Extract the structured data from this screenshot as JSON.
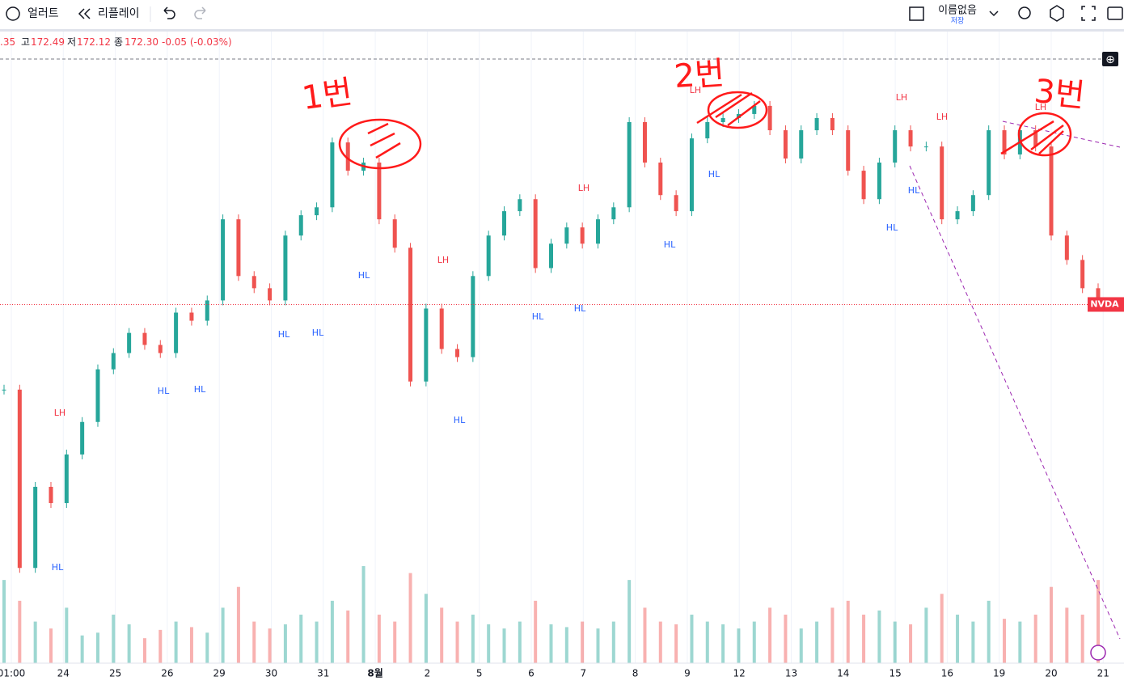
{
  "toolbar": {
    "alert": "얼러트",
    "replay": "리플레이",
    "layout_name": "이름없음",
    "save": "저장"
  },
  "legend": {
    "open_partial": ".35",
    "high_label": "고",
    "high": "172.49",
    "low_label": "저",
    "low": "172.12",
    "close_label": "종",
    "close": "172.30",
    "change": "-0.05 (-0.03%)"
  },
  "symbol": "NVDA",
  "chart_data": {
    "type": "candlestick",
    "x_labels": [
      "01:00",
      "24",
      "25",
      "26",
      "29",
      "30",
      "31",
      "8월",
      "2",
      "5",
      "6",
      "7",
      "8",
      "9",
      "12",
      "13",
      "14",
      "15",
      "16",
      "19",
      "20",
      "21"
    ],
    "close": [
      167.48,
      157.39,
      161.98,
      161.06,
      163.81,
      165.65,
      168.63,
      169.55,
      170.69,
      170.01,
      169.55,
      171.84,
      171.38,
      172.53,
      177.12,
      173.91,
      173.22,
      172.53,
      176.2,
      177.35,
      177.8,
      181.47,
      179.87,
      180.33,
      177.12,
      175.51,
      167.94,
      172.07,
      169.78,
      169.32,
      173.91,
      176.2,
      177.58,
      178.26,
      174.36,
      175.74,
      176.66,
      175.74,
      177.12,
      177.8,
      182.62,
      180.33,
      178.49,
      177.58,
      181.7,
      182.62,
      182.85,
      183.08,
      183.54,
      182.16,
      180.56,
      182.16,
      182.85,
      182.16,
      179.87,
      178.26,
      180.33,
      182.16,
      181.24,
      181.24,
      177.12,
      177.58,
      178.49,
      182.16,
      180.79,
      182.16,
      181.24,
      176.2,
      174.82,
      173.22,
      172.3
    ],
    "volume": [
      60,
      45,
      30,
      25,
      40,
      20,
      22,
      35,
      28,
      18,
      24,
      30,
      26,
      22,
      40,
      55,
      30,
      25,
      28,
      35,
      30,
      45,
      38,
      70,
      35,
      30,
      65,
      50,
      40,
      30,
      35,
      28,
      25,
      30,
      45,
      28,
      26,
      30,
      25,
      30,
      60,
      40,
      30,
      28,
      35,
      30,
      28,
      25,
      30,
      40,
      35,
      25,
      30,
      40,
      45,
      35,
      38,
      30,
      28,
      40,
      50,
      35,
      30,
      45,
      32,
      30,
      35,
      55,
      40,
      35,
      60
    ],
    "ylim": [
      152,
      187.7
    ],
    "swing_labels": [
      "LH",
      "HL",
      "HL",
      "HL",
      "HL",
      "HL",
      "HL",
      "LH",
      "HL",
      "HL",
      "LH",
      "HL",
      "HL",
      "LH",
      "HL",
      "LH",
      "LH",
      "HL",
      "HL",
      "LH"
    ],
    "annotations": [
      "1번",
      "2번",
      "3번"
    ]
  }
}
